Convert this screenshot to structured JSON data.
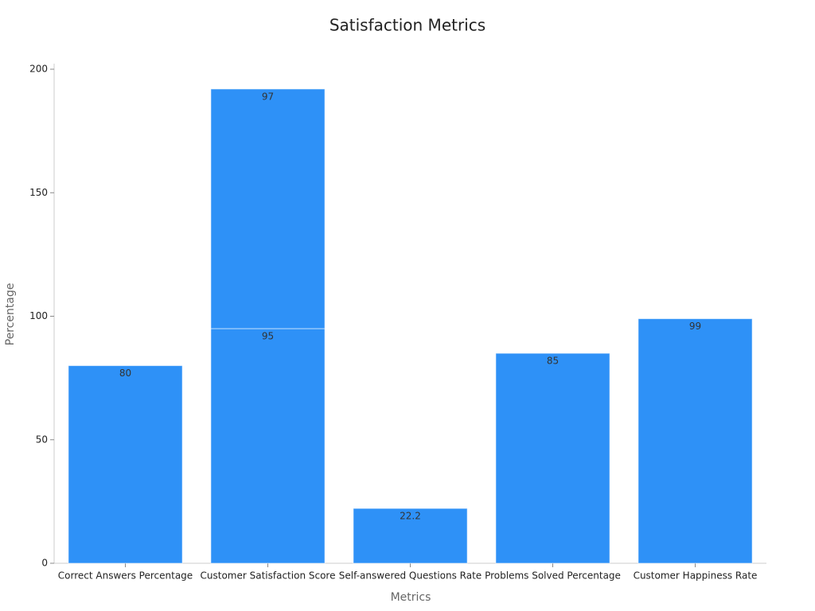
{
  "chart_data": {
    "type": "stacked-bar",
    "title": "Satisfaction Metrics",
    "x_label": "Metrics",
    "y_label": "Percentage",
    "categories": [
      "Correct Answers Percentage",
      "Customer Satisfaction Score",
      "Self-answered Questions Rate",
      "Problems Solved Percentage",
      "Customer Happiness Rate"
    ],
    "series": [
      {
        "color": "#2e91f7",
        "values": [
          80,
          95,
          22.2,
          85,
          99
        ]
      },
      {
        "color": "#2e91f7",
        "values": [
          null,
          97,
          null,
          null,
          null
        ]
      }
    ],
    "ylim": [
      0,
      200
    ],
    "yticks": [
      0,
      50,
      100,
      150,
      200
    ],
    "grid": false
  }
}
